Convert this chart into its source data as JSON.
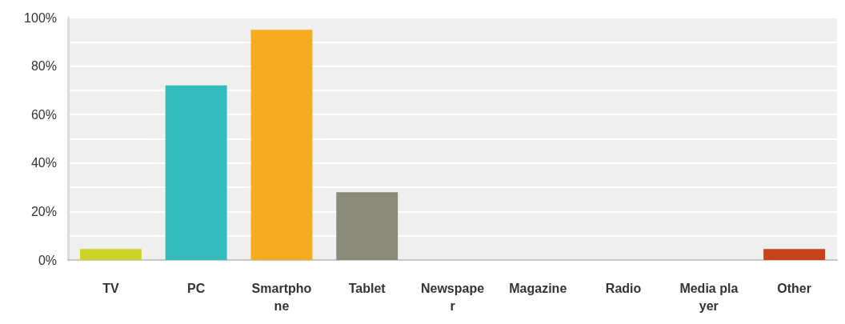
{
  "chart_data": {
    "type": "bar",
    "categories": [
      "TV",
      "PC",
      "Smartphone",
      "Tablet",
      "Newspaper",
      "Magazine",
      "Radio",
      "Media player",
      "Other"
    ],
    "values": [
      4.5,
      72,
      95,
      28,
      0,
      0,
      0,
      0,
      4.5
    ],
    "colors": [
      "#ccd42a",
      "#33bcbe",
      "#f5ad1f",
      "#8a8a78",
      "#5b9bd5",
      "#9b59b6",
      "#2e86c1",
      "#7f8c8d",
      "#c8431c"
    ],
    "ylim": [
      0,
      100
    ],
    "yticks": [
      {
        "value": 0,
        "label": "0%"
      },
      {
        "value": 10,
        "label": null
      },
      {
        "value": 20,
        "label": "20%"
      },
      {
        "value": 30,
        "label": null
      },
      {
        "value": 40,
        "label": "40%"
      },
      {
        "value": 50,
        "label": null
      },
      {
        "value": 60,
        "label": "60%"
      },
      {
        "value": 70,
        "label": null
      },
      {
        "value": 80,
        "label": "80%"
      },
      {
        "value": 90,
        "label": null
      },
      {
        "value": 100,
        "label": "100%"
      }
    ],
    "grid": "y"
  }
}
